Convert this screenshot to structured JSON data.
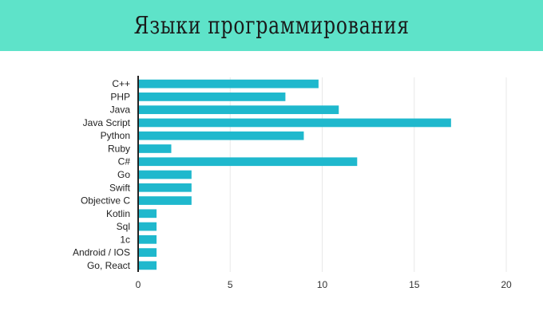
{
  "header": {
    "title": "Языки программирования"
  },
  "colors": {
    "header_bg": "#5ee3c9",
    "bar": "#1fb8cd",
    "grid": "#e8e8e8",
    "axis": "#222222"
  },
  "chart_data": {
    "type": "bar",
    "orientation": "horizontal",
    "title": "Языки программирования",
    "categories": [
      "C++",
      "PHP",
      "Java",
      "Java Script",
      "Python",
      "Ruby",
      "C#",
      "Go",
      "Swift",
      "Objective C",
      "Kotlin",
      "Sql",
      "1c",
      "Android / IOS",
      "Go, React"
    ],
    "values": [
      9.8,
      8,
      10.9,
      17,
      9,
      1.8,
      11.9,
      2.9,
      2.9,
      2.9,
      1,
      1,
      1,
      1,
      1
    ],
    "xlim": [
      0,
      20
    ],
    "xticks": [
      "0",
      "5",
      "10",
      "15",
      "20"
    ],
    "xlabel": "",
    "ylabel": "",
    "grid": true,
    "legend": "none"
  }
}
